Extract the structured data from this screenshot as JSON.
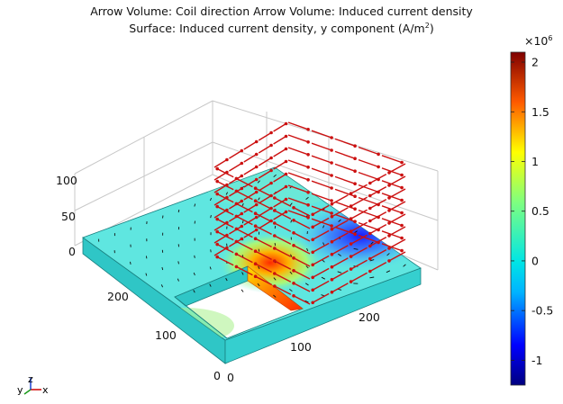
{
  "chart_data": {
    "type": "surface-3d",
    "title_line1": "Arrow Volume: Coil direction  Arrow Volume: Induced current density",
    "title_line2_prefix": "Surface: Induced current density, y component (A/m",
    "title_line2_sup": "2",
    "title_line2_suffix": ")",
    "colorbar": {
      "multiplier_prefix": "×10",
      "multiplier_exp": "6",
      "min": -1.25,
      "max": 2.1,
      "ticks": [
        "2",
        "1.5",
        "1",
        "0.5",
        "0",
        "-0.5",
        "-1"
      ],
      "tick_values": [
        2,
        1.5,
        1,
        0.5,
        0,
        -0.5,
        -1
      ],
      "colormap": "rainbow"
    },
    "z_ticks": [
      "100",
      "50",
      "0"
    ],
    "z_tick_values": [
      100,
      50,
      0
    ],
    "x_ticks": [
      "0",
      "100",
      "200"
    ],
    "x_tick_values": [
      0,
      100,
      200
    ],
    "y_ticks": [
      "0",
      "100",
      "200"
    ],
    "y_tick_values": [
      0,
      100,
      200
    ],
    "triad_labels": {
      "x": "x",
      "y": "y",
      "z": "z"
    },
    "series": [
      {
        "color": "#cc1111"
      },
      {
        "color": "#111111"
      }
    ],
    "colors": {
      "plate_top": "#5fe6e0",
      "plate_side": "#2fc6c6",
      "arrow_coil": "#cc1111",
      "arrow_induced": "#111111",
      "grid": "#c8c8c8"
    }
  }
}
